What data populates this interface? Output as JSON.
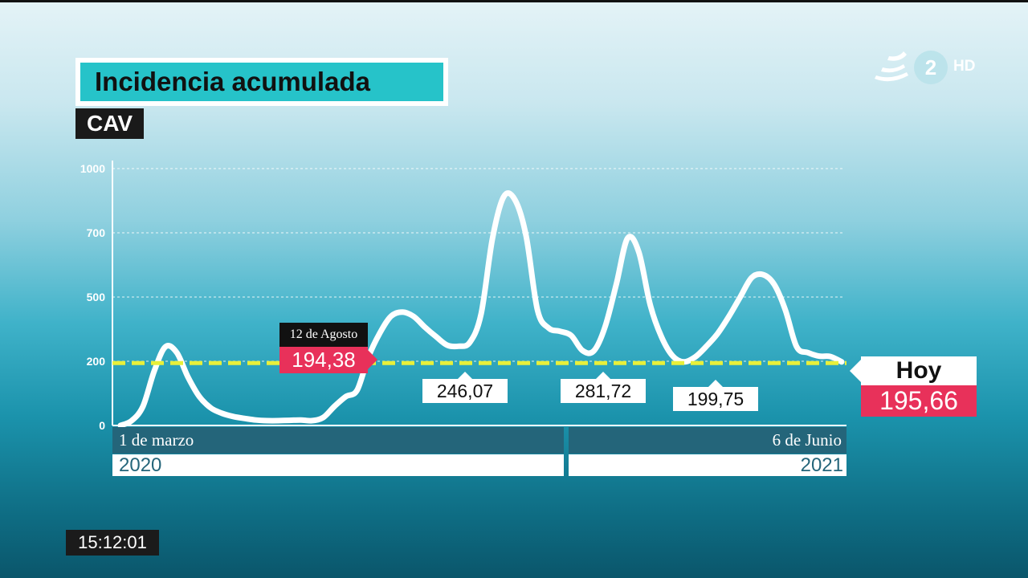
{
  "header": {
    "title": "Incidencia acumulada",
    "subtitle": "CAV"
  },
  "channel": {
    "number": "2",
    "quality": "HD"
  },
  "chart_data": {
    "type": "line",
    "y_ticks": [
      "1000",
      "700",
      "500",
      "200",
      "0"
    ],
    "y_tick_values": [
      1000,
      700,
      500,
      200,
      0
    ],
    "ylim": [
      0,
      1000
    ],
    "x_start_label": "1 de marzo",
    "x_end_label": "6 de Junio",
    "year_start": "2020",
    "year_end": "2021",
    "reference_line": {
      "value": 194.38,
      "color": "#e8f03a",
      "style": "dashed"
    },
    "series": [
      {
        "values": [
          0,
          15,
          60,
          170,
          268,
          240,
          150,
          90,
          55,
          38,
          28,
          22,
          17,
          15,
          15,
          16,
          17,
          15,
          25,
          60,
          90,
          110,
          220,
          330,
          410,
          430,
          410,
          360,
          315,
          275,
          270,
          288,
          420,
          680,
          868,
          855,
          690,
          440,
          355,
          340,
          320,
          250,
          248,
          360,
          540,
          683,
          640,
          465,
          315,
          225,
          198,
          220,
          270,
          330,
          410,
          500,
          560,
          570,
          540,
          440,
          268,
          240,
          224,
          222,
          198
        ],
        "color": "#ffffff"
      }
    ],
    "annotations": {
      "august": {
        "date": "12 de Agosto",
        "value": "194,38"
      },
      "troughs": [
        "246,07",
        "281,72",
        "199,75"
      ],
      "today": {
        "label": "Hoy",
        "value": "195,66"
      }
    },
    "grid": true
  },
  "clock": "15:12:01"
}
